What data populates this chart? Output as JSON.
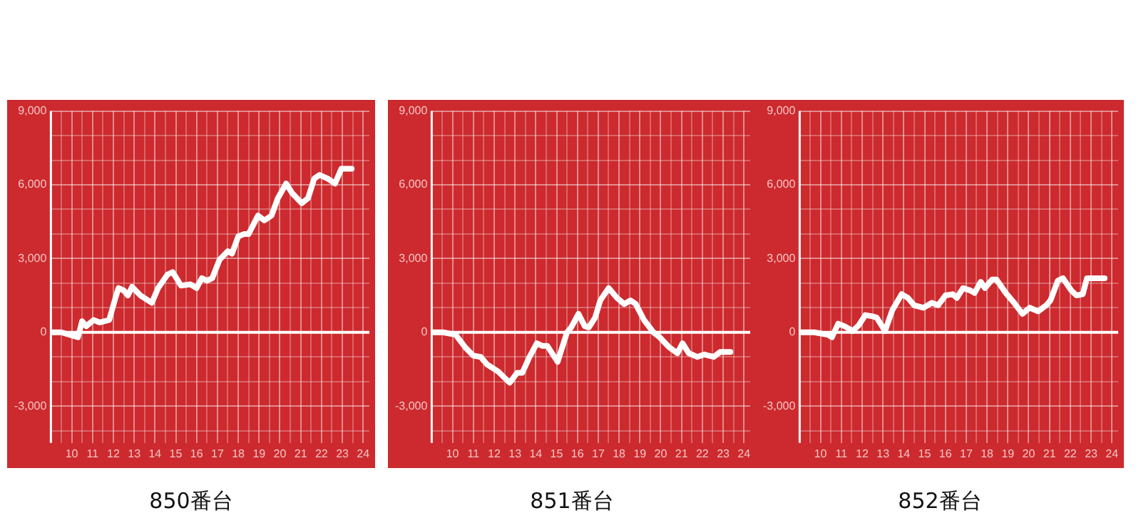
{
  "chart_data": [
    {
      "type": "line",
      "title": "850番台",
      "xlim": [
        9,
        24.3
      ],
      "ylim": [
        -4500,
        9000
      ],
      "xticks": [
        {
          "value": 9.5,
          "label": null
        },
        10,
        {
          "value": 10.5,
          "label": null
        },
        11,
        {
          "value": 11.5,
          "label": null
        },
        12,
        {
          "value": 12.5,
          "label": null
        },
        13,
        {
          "value": 13.5,
          "label": null
        },
        14,
        {
          "value": 14.5,
          "label": null
        },
        15,
        {
          "value": 15.5,
          "label": null
        },
        16,
        {
          "value": 16.5,
          "label": null
        },
        17,
        {
          "value": 17.5,
          "label": null
        },
        18,
        {
          "value": 18.5,
          "label": null
        },
        19,
        {
          "value": 19.5,
          "label": null
        },
        20,
        {
          "value": 20.5,
          "label": null
        },
        21,
        {
          "value": 21.5,
          "label": null
        },
        22,
        {
          "value": 22.5,
          "label": null
        },
        23,
        {
          "value": 23.5,
          "label": null
        },
        24
      ],
      "yticks": [
        {
          "value": -4000,
          "label": null
        },
        {
          "value": -3000,
          "label": "-3,000"
        },
        {
          "value": -2000,
          "label": null
        },
        {
          "value": -1000,
          "label": null
        },
        {
          "value": 0,
          "label": "0"
        },
        {
          "value": 1000,
          "label": null
        },
        {
          "value": 2000,
          "label": null
        },
        {
          "value": 3000,
          "label": "3,000"
        },
        {
          "value": 4000,
          "label": null
        },
        {
          "value": 5000,
          "label": null
        },
        {
          "value": 6000,
          "label": "6,000"
        },
        {
          "value": 7000,
          "label": null
        },
        {
          "value": 8000,
          "label": null
        },
        {
          "value": 9000,
          "label": "9,000"
        }
      ],
      "grid": true,
      "legend": false,
      "marker": "none",
      "line_style": "solid",
      "ref_lines": [
        {
          "axis": "y",
          "value": 0,
          "color": "#ffffff"
        }
      ],
      "series": [
        {
          "color": "#ffffff",
          "x": [
            9.0,
            9.5,
            10.3,
            10.5,
            10.7,
            11.05,
            11.35,
            11.8,
            12.1,
            12.25,
            12.5,
            12.7,
            12.9,
            13.3,
            13.85,
            14.15,
            14.6,
            14.85,
            15.25,
            15.7,
            16.0,
            16.25,
            16.5,
            16.75,
            17.1,
            17.5,
            17.7,
            18.0,
            18.3,
            18.5,
            18.95,
            19.25,
            19.6,
            19.9,
            20.3,
            20.6,
            21.05,
            21.35,
            21.65,
            21.9,
            22.3,
            22.65,
            22.95,
            23.45
          ],
          "values": [
            0,
            0,
            -200,
            450,
            250,
            500,
            400,
            500,
            1400,
            1800,
            1700,
            1500,
            1850,
            1500,
            1200,
            1800,
            2350,
            2450,
            1900,
            1950,
            1800,
            2200,
            2100,
            2200,
            2950,
            3300,
            3200,
            3900,
            4000,
            4000,
            4750,
            4550,
            4750,
            5450,
            6050,
            5650,
            5250,
            5450,
            6250,
            6400,
            6250,
            6050,
            6650,
            6650
          ]
        }
      ]
    },
    {
      "type": "line",
      "title": "851番台",
      "xlim": [
        9,
        24.3
      ],
      "ylim": [
        -4500,
        9000
      ],
      "xticks": [
        {
          "value": 9.5,
          "label": null
        },
        10,
        {
          "value": 10.5,
          "label": null
        },
        11,
        {
          "value": 11.5,
          "label": null
        },
        12,
        {
          "value": 12.5,
          "label": null
        },
        13,
        {
          "value": 13.5,
          "label": null
        },
        14,
        {
          "value": 14.5,
          "label": null
        },
        15,
        {
          "value": 15.5,
          "label": null
        },
        16,
        {
          "value": 16.5,
          "label": null
        },
        17,
        {
          "value": 17.5,
          "label": null
        },
        18,
        {
          "value": 18.5,
          "label": null
        },
        19,
        {
          "value": 19.5,
          "label": null
        },
        20,
        {
          "value": 20.5,
          "label": null
        },
        21,
        {
          "value": 21.5,
          "label": null
        },
        22,
        {
          "value": 22.5,
          "label": null
        },
        23,
        {
          "value": 23.5,
          "label": null
        },
        24
      ],
      "yticks": [
        {
          "value": -4000,
          "label": null
        },
        {
          "value": -3000,
          "label": "-3,000"
        },
        {
          "value": -2000,
          "label": null
        },
        {
          "value": -1000,
          "label": null
        },
        {
          "value": 0,
          "label": "0"
        },
        {
          "value": 1000,
          "label": null
        },
        {
          "value": 2000,
          "label": null
        },
        {
          "value": 3000,
          "label": "3,000"
        },
        {
          "value": 4000,
          "label": null
        },
        {
          "value": 5000,
          "label": null
        },
        {
          "value": 6000,
          "label": "6,000"
        },
        {
          "value": 7000,
          "label": null
        },
        {
          "value": 8000,
          "label": null
        },
        {
          "value": 9000,
          "label": "9,000"
        }
      ],
      "grid": true,
      "legend": false,
      "marker": "none",
      "line_style": "solid",
      "ref_lines": [
        {
          "axis": "y",
          "value": 0,
          "color": "#ffffff"
        }
      ],
      "series": [
        {
          "color": "#ffffff",
          "x": [
            9.05,
            9.55,
            10.15,
            10.6,
            11.0,
            11.35,
            11.65,
            12.2,
            12.5,
            12.75,
            13.1,
            13.35,
            13.7,
            14.05,
            14.3,
            14.55,
            15.05,
            15.5,
            15.7,
            16.05,
            16.35,
            16.55,
            16.85,
            17.1,
            17.5,
            17.9,
            18.25,
            18.55,
            18.8,
            19.2,
            19.65,
            19.95,
            20.4,
            20.8,
            21.05,
            21.35,
            21.75,
            22.1,
            22.3,
            22.55,
            22.85,
            23.35
          ],
          "values": [
            0,
            0,
            -100,
            -600,
            -950,
            -1000,
            -1300,
            -1600,
            -1850,
            -2050,
            -1650,
            -1650,
            -1000,
            -450,
            -550,
            -550,
            -1200,
            0,
            200,
            750,
            250,
            200,
            600,
            1300,
            1800,
            1400,
            1150,
            1300,
            1150,
            500,
            0,
            -200,
            -600,
            -850,
            -450,
            -850,
            -1000,
            -900,
            -950,
            -1000,
            -800,
            -800
          ]
        }
      ]
    },
    {
      "type": "line",
      "title": "852番台",
      "xlim": [
        9,
        24.3
      ],
      "ylim": [
        -4500,
        9000
      ],
      "xticks": [
        {
          "value": 9.5,
          "label": null
        },
        10,
        {
          "value": 10.5,
          "label": null
        },
        11,
        {
          "value": 11.5,
          "label": null
        },
        12,
        {
          "value": 12.5,
          "label": null
        },
        13,
        {
          "value": 13.5,
          "label": null
        },
        14,
        {
          "value": 14.5,
          "label": null
        },
        15,
        {
          "value": 15.5,
          "label": null
        },
        16,
        {
          "value": 16.5,
          "label": null
        },
        17,
        {
          "value": 17.5,
          "label": null
        },
        18,
        {
          "value": 18.5,
          "label": null
        },
        19,
        {
          "value": 19.5,
          "label": null
        },
        20,
        {
          "value": 20.5,
          "label": null
        },
        21,
        {
          "value": 21.5,
          "label": null
        },
        22,
        {
          "value": 22.5,
          "label": null
        },
        23,
        {
          "value": 23.5,
          "label": null
        },
        24
      ],
      "yticks": [
        {
          "value": -4000,
          "label": null
        },
        {
          "value": -3000,
          "label": "-3,000"
        },
        {
          "value": -2000,
          "label": null
        },
        {
          "value": -1000,
          "label": null
        },
        {
          "value": 0,
          "label": "0"
        },
        {
          "value": 1000,
          "label": null
        },
        {
          "value": 2000,
          "label": null
        },
        {
          "value": 3000,
          "label": "3,000"
        },
        {
          "value": 4000,
          "label": null
        },
        {
          "value": 5000,
          "label": null
        },
        {
          "value": 6000,
          "label": "6,000"
        },
        {
          "value": 7000,
          "label": null
        },
        {
          "value": 8000,
          "label": null
        },
        {
          "value": 9000,
          "label": "9,000"
        }
      ],
      "grid": true,
      "legend": false,
      "marker": "none",
      "line_style": "solid",
      "ref_lines": [
        {
          "axis": "y",
          "value": 0,
          "color": "#ffffff"
        }
      ],
      "series": [
        {
          "color": "#ffffff",
          "x": [
            9.0,
            9.7,
            10.35,
            10.55,
            10.85,
            11.15,
            11.55,
            11.85,
            12.15,
            12.5,
            12.7,
            13.1,
            13.45,
            13.9,
            14.2,
            14.5,
            14.95,
            15.35,
            15.65,
            16.0,
            16.35,
            16.55,
            16.85,
            17.2,
            17.4,
            17.7,
            17.9,
            18.25,
            18.45,
            18.9,
            19.3,
            19.7,
            20.05,
            20.45,
            20.85,
            21.05,
            21.4,
            21.65,
            22.05,
            22.3,
            22.6,
            22.8,
            23.65
          ],
          "values": [
            0,
            0,
            -100,
            -200,
            350,
            250,
            50,
            300,
            700,
            650,
            600,
            50,
            900,
            1550,
            1400,
            1100,
            1000,
            1200,
            1100,
            1500,
            1550,
            1400,
            1800,
            1700,
            1600,
            2050,
            1800,
            2150,
            2150,
            1600,
            1200,
            750,
            1000,
            850,
            1100,
            1300,
            2100,
            2200,
            1700,
            1500,
            1550,
            2200,
            2200
          ]
        }
      ]
    }
  ]
}
